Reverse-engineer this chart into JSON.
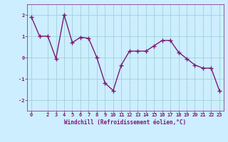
{
  "x": [
    0,
    1,
    2,
    3,
    4,
    5,
    6,
    7,
    8,
    9,
    10,
    11,
    12,
    13,
    14,
    15,
    16,
    17,
    18,
    19,
    20,
    21,
    22,
    23
  ],
  "y": [
    1.9,
    1.0,
    1.0,
    -0.05,
    2.0,
    0.7,
    0.95,
    0.9,
    0.0,
    -1.2,
    -1.55,
    -0.35,
    0.3,
    0.3,
    0.3,
    0.55,
    0.8,
    0.8,
    0.25,
    -0.05,
    -0.35,
    -0.5,
    -0.5,
    -1.55
  ],
  "line_color": "#7B1878",
  "marker": "+",
  "markersize": 4,
  "markeredgewidth": 1,
  "linewidth": 1,
  "background_color": "#cceeff",
  "grid_color": "#99cccc",
  "xlabel": "Windchill (Refroidissement éolien,°C)",
  "xlabel_color": "#7B1878",
  "xlabel_fontsize": 5.5,
  "tick_color": "#7B1878",
  "tick_fontsize": 5.0,
  "ylim": [
    -2.5,
    2.5
  ],
  "xlim": [
    -0.5,
    23.5
  ],
  "yticks": [
    -2,
    -1,
    0,
    1,
    2
  ],
  "xticks": [
    0,
    2,
    3,
    4,
    5,
    6,
    7,
    8,
    9,
    10,
    11,
    12,
    13,
    14,
    15,
    16,
    17,
    18,
    19,
    20,
    21,
    22,
    23
  ]
}
